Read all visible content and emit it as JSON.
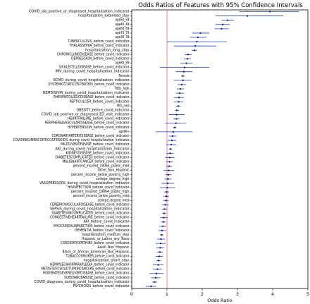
{
  "chart_data": {
    "type": "forest",
    "title": "Odds Ratios of Features with 95% Confidence Intervals",
    "xlabel": "Odds Ratio",
    "ylabel": "",
    "xlim": [
      0,
      5
    ],
    "xticks": [
      0,
      1,
      2,
      3,
      4,
      5
    ],
    "reference_line": 1,
    "colors": {
      "interval": "#1f3fbf",
      "point": "#1a237e",
      "reference": "#e57373",
      "axis": "#000000"
    },
    "features": [
      "COVID_lab_positive_or_diagnosed_hospitalization_indicator",
      "hospitalization_extended_stay",
      "age50_59",
      "age40_49",
      "age60_69",
      "age70_79",
      "age30_39",
      "TUBERCULOSIS_before_covid_indicator",
      "THALASSEMIA_before_covid_indicator",
      "hospitalization_long_stay",
      "CHRONICLUNGDISEASE_before_covid_indicator",
      "DEPRESSION_before_covid_indicator",
      "age80_89",
      "SICKLECELLDISEASE_before_covid_indicator",
      "IMV_during_covid_hospitalization_indicator",
      "Female",
      "ECMO_during_covid_hospitalization_indicator",
      "SYSTEMICCORTICOSTEROIDS_before_covid_indicator",
      "MDs_high",
      "REMDISIVIR_during_covid_hospitalization_indicator",
      "RHEUMATOLOGICDISEASE_before_covid_indicator",
      "PEPTICULCER_before_covid_indicator",
      "MDs_med",
      "OBESITY_before_covid_indicator",
      "COVID_lab_positive_or_diagnosed_ED_visit_indicator",
      "HEARTFAILURE_before_covid_indicator",
      "PERIPHERALVASCULARDISEASE_before_covid_indicator",
      "HYPERTENSION_before_covid_indicator",
      "age90+",
      "CORONARYARTERYDISEASE_before_covid_indicator",
      "COVIDREGIMENCORTICOSTEROIDS_during_covid_hospitalization_indicator",
      "MILDLIVERDISEASE_before_covid_indicator",
      "AKI_during_covid_hospitalization_indicator",
      "KIDNEYDISEASE_before_covid_indicator",
      "DIABETESCOMPLICATED_before_covid_indicator",
      "MALIGNANTCANCER_before_covid_indicator",
      "percent_insured_19064_public_med",
      "Other_Non_Hispanic",
      "percent_income_below_poverty_high",
      "college_degree_high",
      "VASOPRESSORS_during_covid_hospitalization_indicator",
      "HIVINFECTION_before_covid_indicator",
      "percent_insured_19064_public_high",
      "percent_income_below_poverty_med",
      "college_degree_med",
      "CEREBROVASCULARDISEASE_before_covid_indicator",
      "SEPSIS_during_covid_hospitalization_indicator",
      "DIABETESUNCOMPLICATED_before_covid_indicator",
      "CONGESTIVEHEARTFAILURE_before_covid_indicator",
      "AKI_before_covid_indicator",
      "MYOCARDIALINFARCTION_before_covid_indicator",
      "DEMENTIA_before_covid_indicator",
      "hospitalization_medium_stay",
      "Hispanic_or_Latino_any_Race",
      "CARDIOMYOPATHIES_before_covid_indicator",
      "Asian_Non_Hispanic",
      "Black_or_African_American_Non_Hispanic",
      "TOBACCOSMOKER_before_covid_indicator",
      "hospitalization_short_stay",
      "HEMIPLEGIAORPARAPLEGIA_before_covid_indicator",
      "METASTATICSOLIDTUMORCANCERS_before_covid_indicator",
      "MODERATESEVERELIVERDISEASE_before_covid_indicator",
      "SUBSTANCEABUSE_before_covid_indicator",
      "COVID_diagnosis_during_covid_hospitalization_indicator",
      "PSYCHOSIS_before_covid_indicator"
    ],
    "odds_ratio": [
      3.92,
      3.28,
      2.72,
      2.58,
      2.55,
      1.95,
      1.88,
      1.85,
      1.8,
      1.78,
      1.6,
      1.58,
      1.55,
      1.5,
      1.48,
      1.45,
      1.45,
      1.42,
      1.38,
      1.36,
      1.34,
      1.33,
      1.32,
      1.28,
      1.27,
      1.27,
      1.25,
      1.22,
      1.18,
      1.16,
      1.14,
      1.12,
      1.1,
      1.09,
      1.08,
      1.07,
      1.06,
      1.05,
      1.04,
      1.03,
      1.02,
      1.01,
      0.99,
      0.98,
      0.97,
      0.95,
      0.93,
      0.92,
      0.91,
      0.9,
      0.88,
      0.86,
      0.85,
      0.83,
      0.82,
      0.81,
      0.8,
      0.78,
      0.76,
      0.75,
      0.73,
      0.7,
      0.68,
      0.65,
      0.55
    ],
    "ci_lower": [
      3.05,
      2.38,
      2.55,
      2.38,
      2.35,
      1.72,
      1.65,
      1.0,
      1.2,
      1.7,
      1.5,
      1.48,
      1.38,
      0.8,
      1.25,
      1.4,
      1.2,
      1.3,
      1.28,
      1.25,
      1.2,
      1.2,
      1.25,
      1.22,
      1.05,
      1.18,
      0.95,
      1.17,
      0.68,
      1.05,
      1.02,
      0.98,
      1.05,
      0.99,
      0.95,
      0.97,
      0.98,
      0.9,
      0.95,
      0.93,
      0.85,
      0.8,
      0.92,
      0.9,
      0.89,
      0.85,
      0.85,
      0.87,
      0.8,
      0.83,
      0.78,
      0.75,
      0.8,
      0.72,
      0.68,
      0.7,
      0.72,
      0.68,
      0.7,
      0.6,
      0.6,
      0.5,
      0.55,
      0.58,
      0.4
    ],
    "ci_upper": [
      4.75,
      4.3,
      2.9,
      2.78,
      2.75,
      2.2,
      2.12,
      2.7,
      2.4,
      1.86,
      1.7,
      1.68,
      1.72,
      2.2,
      1.72,
      1.5,
      1.7,
      1.54,
      1.48,
      1.48,
      1.48,
      1.46,
      1.39,
      1.34,
      1.5,
      1.36,
      1.55,
      1.27,
      1.72,
      1.27,
      1.26,
      1.26,
      1.15,
      1.19,
      1.21,
      1.17,
      1.14,
      1.2,
      1.13,
      1.13,
      1.2,
      1.23,
      1.06,
      1.06,
      1.05,
      1.05,
      1.01,
      0.97,
      1.02,
      0.97,
      0.98,
      0.97,
      0.9,
      0.94,
      0.96,
      0.92,
      0.88,
      0.88,
      0.82,
      0.9,
      0.86,
      0.9,
      0.81,
      0.72,
      0.7
    ]
  }
}
